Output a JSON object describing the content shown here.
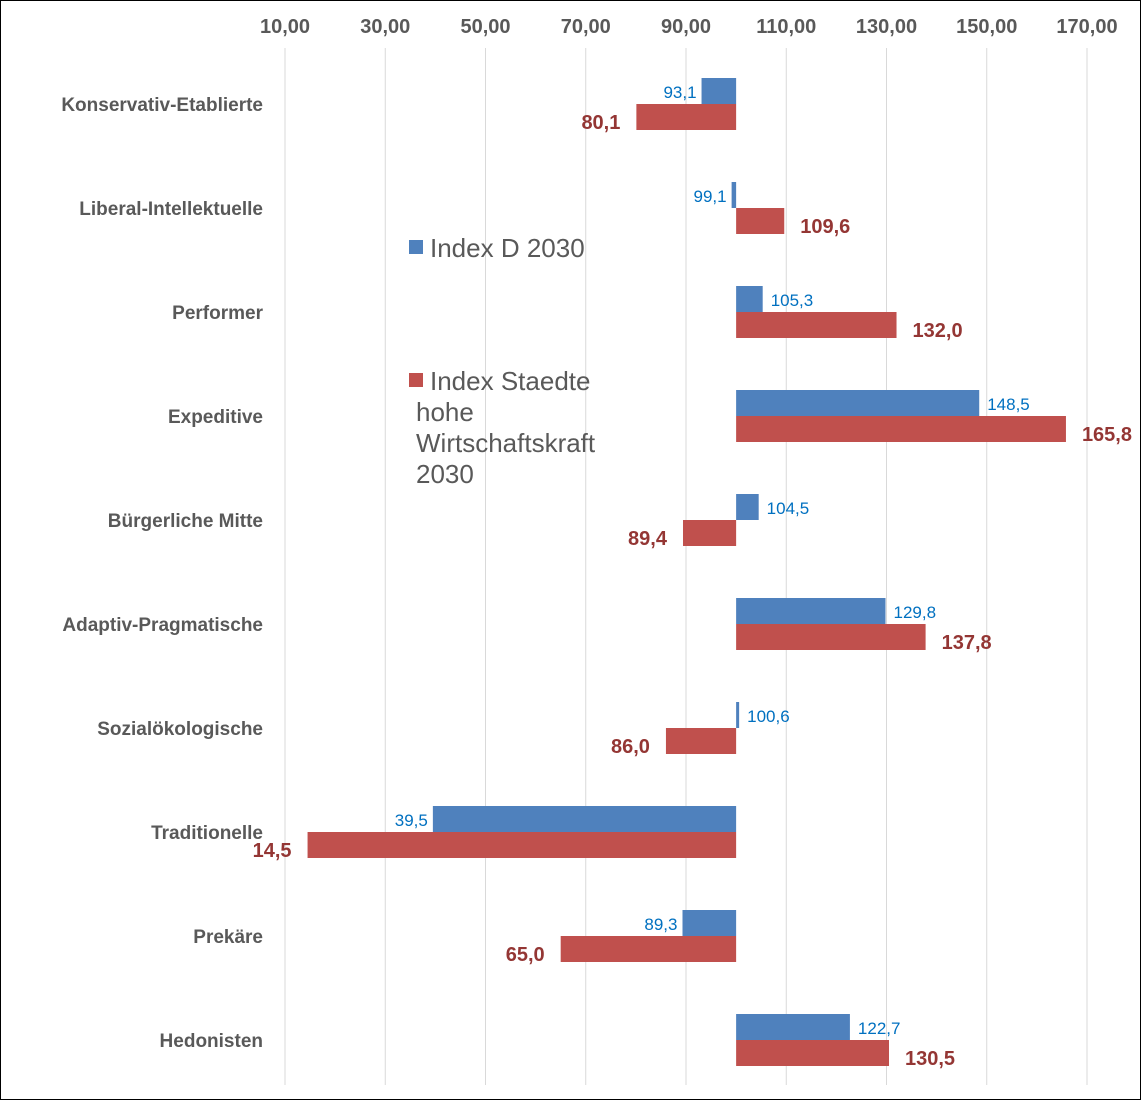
{
  "chart_data": {
    "type": "bar",
    "orientation": "horizontal",
    "baseline": 100,
    "xlim": [
      10,
      170
    ],
    "x_ticks": [
      "10,00",
      "30,00",
      "50,00",
      "70,00",
      "90,00",
      "110,00",
      "130,00",
      "150,00",
      "170,00"
    ],
    "x_tick_values": [
      10,
      30,
      50,
      70,
      90,
      110,
      130,
      150,
      170
    ],
    "x_axis_position": "top",
    "grid": true,
    "legend_position": "left-center",
    "categories": [
      "Konservativ-Etablierte",
      "Liberal-Intellektuelle",
      "Performer",
      "Expeditive",
      "Bürgerliche Mitte",
      "Adaptiv-Pragmatische",
      "Sozialökologische",
      "Traditionelle",
      "Prekäre",
      "Hedonisten"
    ],
    "series": [
      {
        "name": "Index D 2030",
        "color": "#4F81BD",
        "label_color": "#0070C0",
        "values": [
          93.1,
          99.1,
          105.3,
          148.5,
          104.5,
          129.8,
          100.6,
          39.5,
          89.3,
          122.7
        ],
        "labels": [
          "93,1",
          "99,1",
          "105,3",
          "148,5",
          "104,5",
          "129,8",
          "100,6",
          "39,5",
          "89,3",
          "122,7"
        ]
      },
      {
        "name": "Index Staedte hohe Wirtschaftskraft 2030",
        "name_lines": [
          "Index Staedte",
          "hohe",
          "Wirtschaftskraft",
          "2030"
        ],
        "color": "#C0504D",
        "label_color": "#943634",
        "values": [
          80.1,
          109.6,
          132.0,
          165.8,
          89.4,
          137.8,
          86.0,
          14.5,
          65.0,
          130.5
        ],
        "labels": [
          "80,1",
          "109,6",
          "132,0",
          "165,8",
          "89,4",
          "137,8",
          "86,0",
          "14,5",
          "65,0",
          "130,5"
        ]
      }
    ]
  }
}
